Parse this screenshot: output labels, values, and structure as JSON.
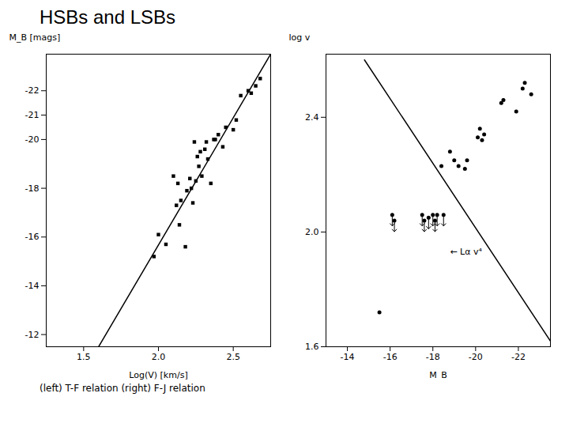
{
  "title": "HSBs and LSBs",
  "caption": "(left) T-F relation (right) F-J relation",
  "chart_data": [
    {
      "type": "scatter",
      "xlabel": "Log(V) [km/s]",
      "ylabel": "M_B [mags]",
      "xlim": [
        1.25,
        2.75
      ],
      "ylim": [
        -11.5,
        -23.5
      ],
      "xticks": [
        1.5,
        {
          "value": 2.0,
          "label": "2.0"
        },
        2.5
      ],
      "yticks": [
        -22,
        -20,
        -18,
        -16,
        -21,
        -14,
        -12
      ],
      "grid": false,
      "series": [
        {
          "type": "scatter",
          "marker": "square",
          "color": "black",
          "x": [
            1.97,
            2.0,
            2.05,
            2.1,
            2.12,
            2.13,
            2.14,
            2.15,
            2.18,
            2.19,
            2.21,
            2.22,
            2.23,
            2.24,
            2.25,
            2.26,
            2.27,
            2.28,
            2.29,
            2.31,
            2.32,
            2.33,
            2.35,
            2.37,
            2.38,
            2.4,
            2.43,
            2.45,
            2.5,
            2.52,
            2.55,
            2.6,
            2.62,
            2.65,
            2.68
          ],
          "y": [
            -15.2,
            -16.1,
            -15.7,
            -18.5,
            -17.3,
            -18.2,
            -16.5,
            -17.5,
            -15.6,
            -17.9,
            -18.4,
            -18.0,
            -17.4,
            -19.9,
            -18.3,
            -19.3,
            -18.9,
            -19.5,
            -18.5,
            -19.6,
            -19.9,
            -19.2,
            -18.2,
            -20.0,
            -20.0,
            -20.2,
            -19.7,
            -20.5,
            -20.4,
            -20.8,
            -21.8,
            -22.0,
            -21.9,
            -22.2,
            -22.5
          ]
        },
        {
          "type": "line",
          "color": "black",
          "x": [
            1.6,
            2.75
          ],
          "y": [
            -11.5,
            -23.5
          ]
        }
      ]
    },
    {
      "type": "scatter",
      "xlabel": "M_B",
      "ylabel": "log v",
      "xlim": [
        -13,
        -23.5
      ],
      "ylim": [
        1.6,
        2.62
      ],
      "xticks": [
        -16,
        -18,
        -20,
        -22,
        -14
      ],
      "yticks": [
        1.6,
        {
          "value": 2.0,
          "label": "2.0"
        },
        2.4
      ],
      "grid": false,
      "series": [
        {
          "type": "scatter",
          "marker": "circle",
          "color": "black",
          "x": [
            -15.5,
            -18.4,
            -18.8,
            -19.0,
            -19.2,
            -19.5,
            -19.6,
            -20.1,
            -20.2,
            -20.3,
            -20.4,
            -21.2,
            -21.3,
            -21.9,
            -22.2,
            -22.3,
            -22.6
          ],
          "y": [
            1.72,
            2.23,
            2.28,
            2.25,
            2.23,
            2.22,
            2.25,
            2.33,
            2.36,
            2.32,
            2.34,
            2.45,
            2.46,
            2.42,
            2.5,
            2.52,
            2.48
          ]
        },
        {
          "type": "scatter",
          "marker": "arrow",
          "color": "black",
          "x": [
            -16.1,
            -16.2,
            -17.5,
            -17.6,
            -17.8,
            -18.0,
            -18.1,
            -18.2,
            -18.5
          ],
          "y": [
            2.06,
            2.04,
            2.06,
            2.04,
            2.05,
            2.06,
            2.04,
            2.06,
            2.06
          ]
        },
        {
          "type": "line",
          "color": "black",
          "x": [
            -14.8,
            -23.5
          ],
          "y": [
            2.6,
            1.62
          ]
        }
      ],
      "annotations": [
        {
          "text": "← Lα v⁴",
          "x": -18.8,
          "y": 1.93
        }
      ]
    }
  ]
}
